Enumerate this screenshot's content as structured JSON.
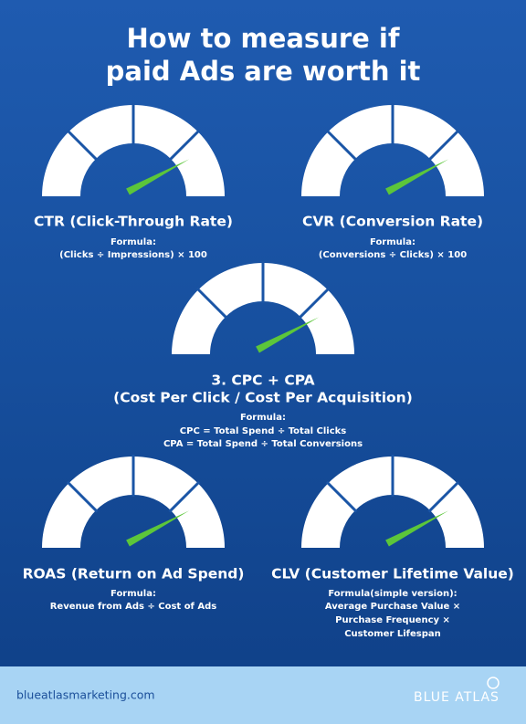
{
  "header": {
    "title": [
      "How to measure if",
      "paid Ads are worth it"
    ]
  },
  "metrics": [
    {
      "name": "CTR (Click-Through Rate)",
      "formula_label": "Formula:",
      "formula_lines": [
        "(Clicks ÷ Impressions) × 100"
      ]
    },
    {
      "name": "CVR (Conversion Rate)",
      "formula_label": "Formula:",
      "formula_lines": [
        "(Conversions ÷ Clicks) × 100"
      ]
    },
    {
      "name": "3. CPC + CPA",
      "subname": "(Cost Per Click / Cost Per Acquisition)",
      "formula_label": "Formula:",
      "formula_lines": [
        "CPC = Total Spend ÷ Total Clicks",
        "CPA = Total Spend ÷ Total Conversions"
      ]
    },
    {
      "name": "ROAS (Return on Ad Spend)",
      "formula_label": "Formula:",
      "formula_lines": [
        "Revenue from Ads ÷ Cost of Ads"
      ]
    },
    {
      "name": "CLV (Customer Lifetime Value)",
      "formula_label": "Formula(simple version):",
      "formula_lines": [
        "Average Purchase Value ×",
        "Purchase Frequency ×",
        "Customer Lifespan"
      ]
    }
  ],
  "footer": {
    "url": "blueatlasmarketing.com",
    "logo": "BLUE ATLAS"
  }
}
